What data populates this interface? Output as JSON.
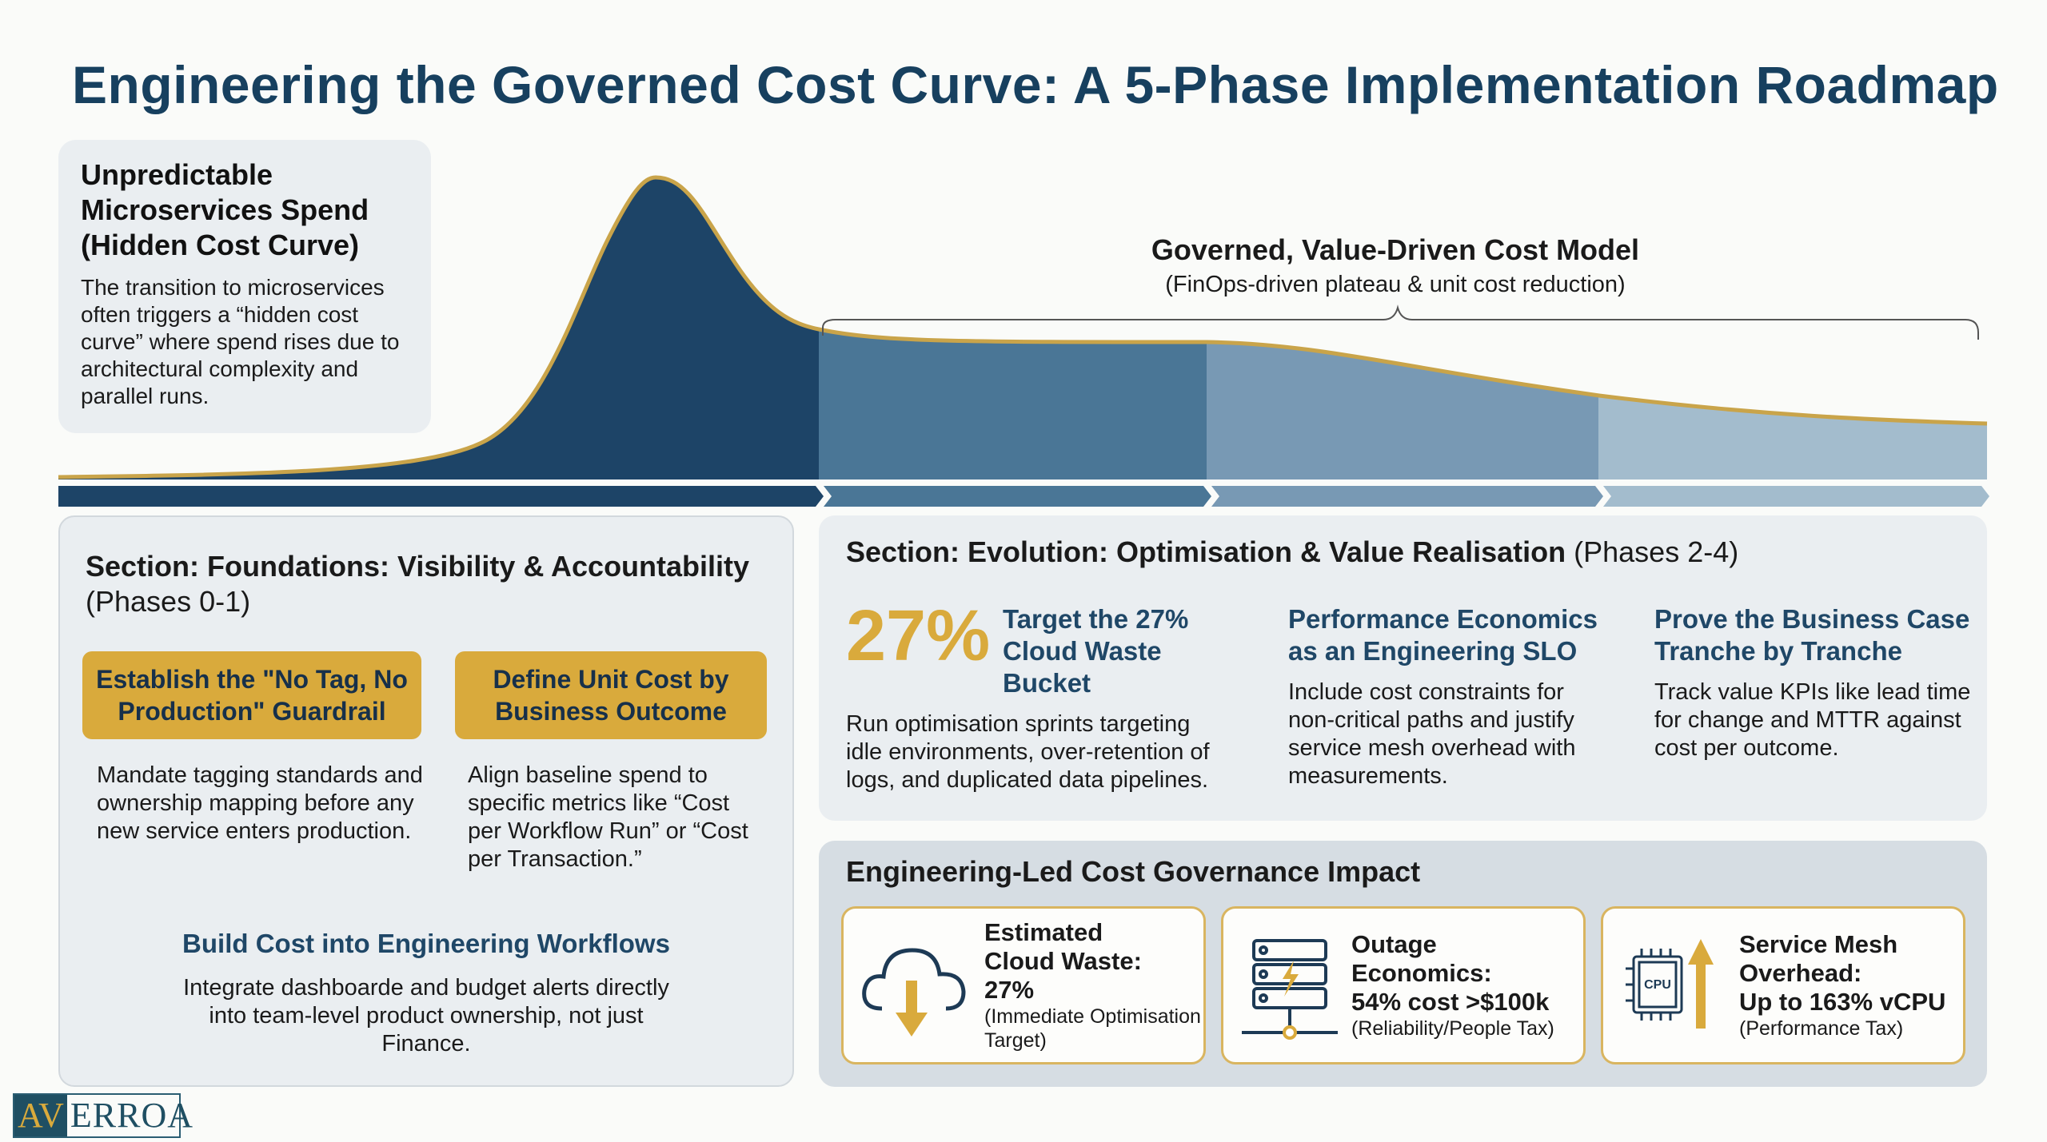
{
  "title": "Engineering the Governed Cost Curve: A 5-Phase Implementation Roadmap",
  "hidden_curve": {
    "title": "Unpredictable Microservices Spend (Hidden Cost Curve)",
    "text": "The transition to microservices often triggers a “hidden cost curve” where spend rises due to architectural complexity and parallel runs."
  },
  "governed": {
    "title": "Governed, Value-Driven Cost Model",
    "subtitle": "(FinOps-driven plateau & unit cost reduction)"
  },
  "colors": {
    "phase1": "#1d4467",
    "phase2": "#4a7696",
    "phase3": "#7899b4",
    "phase4": "#a3bccd",
    "gold": "#d9aa3c",
    "curve_line": "#c9a44a"
  },
  "foundations": {
    "title": "Section: Foundations: Visibility & Accountability",
    "phases": "(Phases 0-1)",
    "items": [
      {
        "label": "Establish the \"No Tag, No Production\" Guardrail",
        "text": "Mandate tagging standards and ownership mapping before any new service enters production."
      },
      {
        "label": "Define Unit Cost by Business Outcome",
        "text": "Align baseline spend to specific metrics like “Cost per Workflow Run” or “Cost per Transaction.”"
      }
    ],
    "build_title": "Build Cost into Engineering Workflows",
    "build_text": "Integrate dashboarde and budget alerts directly into team-level product ownership, not just Finance."
  },
  "evolution": {
    "title": "Section: Evolution: Optimisation & Value Realisation",
    "phases": "(Phases 2-4)",
    "big_stat": "27%",
    "items": [
      {
        "title": "Target the 27% Cloud Waste Bucket",
        "text": "Run optimisation sprints targeting idle environments, over-retention of logs, and duplicated data pipelines."
      },
      {
        "title": "Performance Economics as an Engineering SLO",
        "text": "Include cost constraints for non-critical paths and justify service mesh overhead with measurements."
      },
      {
        "title": "Prove the Business Case Tranche by Tranche",
        "text": "Track value KPIs like lead time for change and MTTR against cost per outcome."
      }
    ]
  },
  "impact": {
    "title": "Engineering-Led Cost Governance Impact",
    "cards": [
      {
        "icon": "cloud-download-icon",
        "l1": "Estimated",
        "l2": "Cloud Waste:",
        "l3": "27%",
        "note": "(Immediate Optimisation Target)"
      },
      {
        "icon": "server-icon",
        "l1": "Outage Economics:",
        "l2": "54% cost >$100k",
        "l3": "",
        "note": "(Reliability/People Tax)"
      },
      {
        "icon": "cpu-icon",
        "l1": "Service Mesh",
        "l2": "Overhead:",
        "l3": "Up to 163% vCPU",
        "note": "(Performance Tax)"
      }
    ]
  },
  "logo": {
    "av": "AV",
    "rest": "ERROA"
  }
}
